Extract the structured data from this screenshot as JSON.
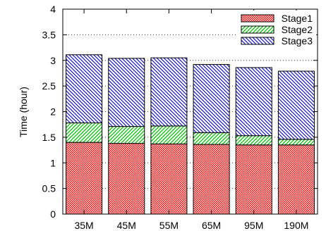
{
  "chart_data": {
    "type": "bar",
    "stacked": true,
    "title": "",
    "xlabel": "",
    "ylabel": "Time (hour)",
    "ylim": [
      0,
      4
    ],
    "yticks": [
      "0",
      "0.5",
      "1",
      "1.5",
      "2",
      "2.5",
      "3",
      "3.5",
      "4"
    ],
    "ytick_values": [
      0,
      0.5,
      1,
      1.5,
      2,
      2.5,
      3,
      3.5,
      4
    ],
    "categories": [
      "35M",
      "45M",
      "55M",
      "65M",
      "95M",
      "190M"
    ],
    "grid": "horizontal-dotted",
    "legend_position": "top-right",
    "series": [
      {
        "name": "Stage1",
        "color": "#ff0000",
        "pattern": "dots",
        "values": [
          1.4,
          1.38,
          1.37,
          1.36,
          1.35,
          1.35
        ]
      },
      {
        "name": "Stage2",
        "color": "#00c000",
        "pattern": "diagonal-up",
        "values": [
          0.38,
          0.33,
          0.35,
          0.23,
          0.18,
          0.11
        ]
      },
      {
        "name": "Stage3",
        "color": "#0000c0",
        "pattern": "diagonal-down",
        "values": [
          1.33,
          1.33,
          1.33,
          1.33,
          1.33,
          1.33
        ]
      }
    ]
  }
}
